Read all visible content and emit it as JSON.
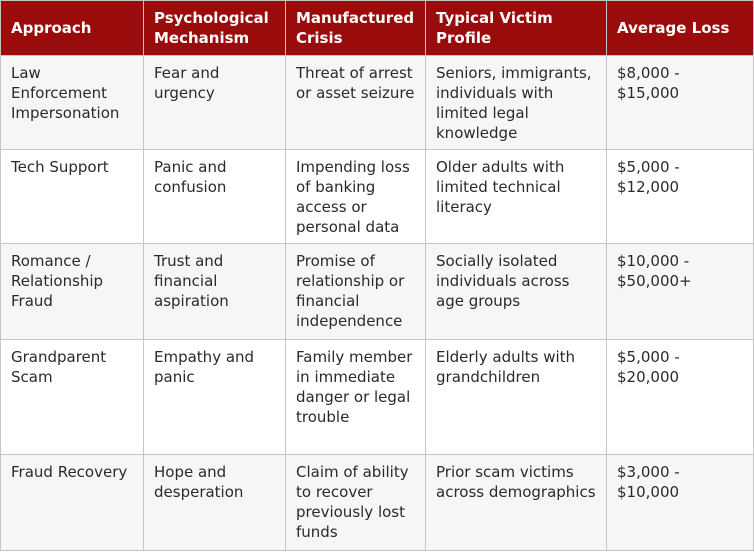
{
  "table": {
    "columns": [
      "Approach",
      "Psychological Mechanism",
      "Manufactured Crisis",
      "Typical Victim Profile",
      "Average Loss"
    ],
    "rows": [
      [
        "Law Enforcement Impersonation",
        "Fear and urgency",
        "Threat of arrest or asset seizure",
        "Seniors, immigrants, individuals with limited legal knowledge",
        "$8,000 - $15,000"
      ],
      [
        "Tech Support",
        "Panic and confusion",
        "Impending loss of banking access or personal data",
        "Older adults with limited technical literacy",
        "$5,000 - $12,000"
      ],
      [
        "Romance / Relationship Fraud",
        "Trust and financial aspiration",
        "Promise of relationship or financial independence",
        "Socially isolated individuals across age groups",
        "$10,000 - $50,000+"
      ],
      [
        "Grandparent Scam",
        "Empathy and panic",
        "Family member in immediate danger or legal trouble",
        "Elderly adults with grandchildren",
        "$5,000 - $20,000"
      ],
      [
        "Fraud Recovery",
        "Hope and desperation",
        "Claim of ability to recover previously lost funds",
        "Prior scam victims across demographics",
        "$3,000 - $10,000"
      ]
    ]
  }
}
